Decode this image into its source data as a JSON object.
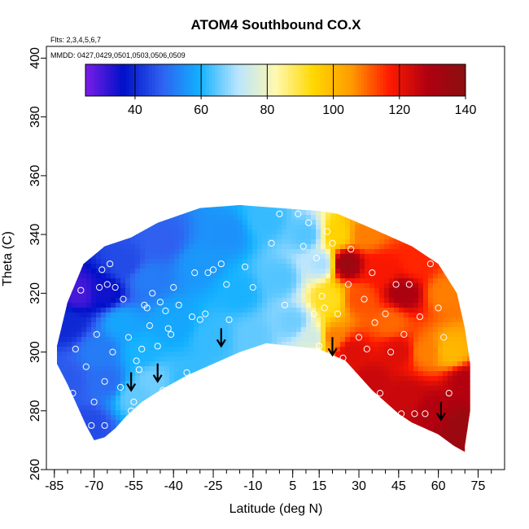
{
  "chart_data": {
    "type": "heatmap",
    "title": "ATOM4 Southbound CO.X",
    "annotations": [
      "Flts: 2,3,4,5,6,7",
      "MMDD: 0427,0429,0501,0503,0506,0509"
    ],
    "xlabel": "Latitude (deg N)",
    "ylabel": "Theta (C)",
    "xlim": [
      -88,
      85
    ],
    "ylim": [
      260,
      404
    ],
    "x_ticks": [
      -85,
      -70,
      -55,
      -40,
      -25,
      -10,
      5,
      15,
      30,
      45,
      60,
      75
    ],
    "y_ticks": [
      260,
      280,
      300,
      320,
      340,
      360,
      380,
      400
    ],
    "colorbar": {
      "range": [
        25,
        140
      ],
      "ticks": [
        40,
        60,
        80,
        100,
        120,
        140
      ],
      "colors": [
        "#7a1ee8",
        "#0010c8",
        "#2f60f0",
        "#12b0ff",
        "#b8e4ff",
        "#fff8b0",
        "#ffd800",
        "#ff9a00",
        "#ff1a00",
        "#b00010",
        "#8a1010"
      ],
      "placement": "top"
    },
    "domain_boundary": {
      "upper": [
        [
          -84,
          302
        ],
        [
          -80,
          317
        ],
        [
          -74,
          330
        ],
        [
          -66,
          336
        ],
        [
          -56,
          339
        ],
        [
          -46,
          344
        ],
        [
          -30,
          349
        ],
        [
          -15,
          350
        ],
        [
          0,
          349
        ],
        [
          15,
          348
        ],
        [
          22,
          347
        ],
        [
          35,
          342
        ],
        [
          50,
          336
        ],
        [
          60,
          330
        ],
        [
          67,
          320
        ],
        [
          70,
          308
        ],
        [
          72,
          296
        ],
        [
          72,
          280
        ],
        [
          70,
          268
        ]
      ],
      "lower": [
        [
          70,
          266
        ],
        [
          66,
          268
        ],
        [
          60,
          272
        ],
        [
          50,
          276
        ],
        [
          45,
          279
        ],
        [
          35,
          287
        ],
        [
          25,
          297
        ],
        [
          15,
          301
        ],
        [
          5,
          302
        ],
        [
          -5,
          303
        ],
        [
          -15,
          300
        ],
        [
          -25,
          296
        ],
        [
          -35,
          292
        ],
        [
          -45,
          287
        ],
        [
          -52,
          283
        ],
        [
          -58,
          278
        ],
        [
          -62,
          274
        ],
        [
          -66,
          271
        ],
        [
          -70,
          270
        ],
        [
          -73,
          275
        ],
        [
          -76,
          281
        ],
        [
          -80,
          289
        ],
        [
          -84,
          296
        ]
      ]
    },
    "field_samples": [
      {
        "lat": -80,
        "theta": 290,
        "value": 47
      },
      {
        "lat": -80,
        "theta": 310,
        "value": 40
      },
      {
        "lat": -76,
        "theta": 320,
        "value": 30
      },
      {
        "lat": -72,
        "theta": 275,
        "value": 45
      },
      {
        "lat": -68,
        "theta": 300,
        "value": 52
      },
      {
        "lat": -66,
        "theta": 320,
        "value": 35
      },
      {
        "lat": -65,
        "theta": 290,
        "value": 50
      },
      {
        "lat": -60,
        "theta": 310,
        "value": 58
      },
      {
        "lat": -58,
        "theta": 330,
        "value": 45
      },
      {
        "lat": -55,
        "theta": 285,
        "value": 65
      },
      {
        "lat": -52,
        "theta": 300,
        "value": 60
      },
      {
        "lat": -50,
        "theta": 325,
        "value": 52
      },
      {
        "lat": -48,
        "theta": 290,
        "value": 66
      },
      {
        "lat": -44,
        "theta": 338,
        "value": 48
      },
      {
        "lat": -40,
        "theta": 310,
        "value": 58
      },
      {
        "lat": -35,
        "theta": 290,
        "value": 62
      },
      {
        "lat": -30,
        "theta": 330,
        "value": 56
      },
      {
        "lat": -25,
        "theta": 305,
        "value": 62
      },
      {
        "lat": -20,
        "theta": 340,
        "value": 55
      },
      {
        "lat": -15,
        "theta": 320,
        "value": 60
      },
      {
        "lat": -10,
        "theta": 305,
        "value": 65
      },
      {
        "lat": -5,
        "theta": 345,
        "value": 62
      },
      {
        "lat": 0,
        "theta": 325,
        "value": 64
      },
      {
        "lat": 5,
        "theta": 310,
        "value": 66
      },
      {
        "lat": 10,
        "theta": 340,
        "value": 64
      },
      {
        "lat": 13,
        "theta": 305,
        "value": 75
      },
      {
        "lat": 16,
        "theta": 330,
        "value": 70
      },
      {
        "lat": 19,
        "theta": 318,
        "value": 92
      },
      {
        "lat": 20,
        "theta": 305,
        "value": 108
      },
      {
        "lat": 22,
        "theta": 340,
        "value": 95
      },
      {
        "lat": 25,
        "theta": 330,
        "value": 135
      },
      {
        "lat": 27,
        "theta": 300,
        "value": 122
      },
      {
        "lat": 30,
        "theta": 318,
        "value": 112
      },
      {
        "lat": 32,
        "theta": 340,
        "value": 108
      },
      {
        "lat": 35,
        "theta": 290,
        "value": 125
      },
      {
        "lat": 38,
        "theta": 328,
        "value": 118
      },
      {
        "lat": 42,
        "theta": 310,
        "value": 110
      },
      {
        "lat": 45,
        "theta": 300,
        "value": 122
      },
      {
        "lat": 47,
        "theta": 320,
        "value": 130
      },
      {
        "lat": 48,
        "theta": 285,
        "value": 125
      },
      {
        "lat": 52,
        "theta": 330,
        "value": 116
      },
      {
        "lat": 55,
        "theta": 300,
        "value": 108
      },
      {
        "lat": 58,
        "theta": 280,
        "value": 128
      },
      {
        "lat": 62,
        "theta": 320,
        "value": 108
      },
      {
        "lat": 65,
        "theta": 300,
        "value": 100
      },
      {
        "lat": 68,
        "theta": 275,
        "value": 135
      },
      {
        "lat": 70,
        "theta": 290,
        "value": 128
      }
    ],
    "observations": [
      [
        -82,
        320
      ],
      [
        -78,
        286
      ],
      [
        -77,
        301
      ],
      [
        -75,
        321
      ],
      [
        -73,
        295
      ],
      [
        -71,
        275
      ],
      [
        -70,
        283
      ],
      [
        -69,
        306
      ],
      [
        -68,
        322
      ],
      [
        -67,
        328
      ],
      [
        -66,
        290
      ],
      [
        -66,
        275
      ],
      [
        -65,
        323
      ],
      [
        -64,
        330
      ],
      [
        -63,
        300
      ],
      [
        -62,
        322
      ],
      [
        -60,
        288
      ],
      [
        -59,
        318
      ],
      [
        -57,
        305
      ],
      [
        -56,
        280
      ],
      [
        -55,
        283
      ],
      [
        -54,
        297
      ],
      [
        -53,
        294
      ],
      [
        -52,
        301
      ],
      [
        -51,
        316
      ],
      [
        -50,
        315
      ],
      [
        -49,
        309
      ],
      [
        -48,
        320
      ],
      [
        -47,
        284
      ],
      [
        -46,
        302
      ],
      [
        -45,
        317
      ],
      [
        -44,
        287
      ],
      [
        -43,
        314
      ],
      [
        -42,
        308
      ],
      [
        -41,
        306
      ],
      [
        -40,
        322
      ],
      [
        -38,
        316
      ],
      [
        -35,
        293
      ],
      [
        -33,
        312
      ],
      [
        -32,
        327
      ],
      [
        -30,
        311
      ],
      [
        -28,
        313
      ],
      [
        -27,
        327
      ],
      [
        -25,
        328
      ],
      [
        -22,
        330
      ],
      [
        -20,
        323
      ],
      [
        -19,
        311
      ],
      [
        -17,
        296
      ],
      [
        -13,
        329
      ],
      [
        -10,
        322
      ],
      [
        -6,
        300
      ],
      [
        -3,
        337
      ],
      [
        0,
        347
      ],
      [
        2,
        316
      ],
      [
        5,
        300
      ],
      [
        7,
        347
      ],
      [
        9,
        336
      ],
      [
        11,
        344
      ],
      [
        13,
        313
      ],
      [
        14,
        332
      ],
      [
        15,
        302
      ],
      [
        16,
        319
      ],
      [
        17,
        315
      ],
      [
        18,
        341
      ],
      [
        19,
        299
      ],
      [
        20,
        337
      ],
      [
        22,
        313
      ],
      [
        24,
        298
      ],
      [
        26,
        323
      ],
      [
        27,
        335
      ],
      [
        29,
        291
      ],
      [
        30,
        305
      ],
      [
        32,
        318
      ],
      [
        33,
        301
      ],
      [
        35,
        327
      ],
      [
        36,
        310
      ],
      [
        38,
        286
      ],
      [
        40,
        313
      ],
      [
        42,
        300
      ],
      [
        44,
        323
      ],
      [
        46,
        279
      ],
      [
        47,
        306
      ],
      [
        49,
        323
      ],
      [
        51,
        279
      ],
      [
        53,
        312
      ],
      [
        55,
        279
      ],
      [
        57,
        330
      ],
      [
        60,
        315
      ],
      [
        62,
        305
      ],
      [
        64,
        286
      ]
    ],
    "arrows": [
      {
        "lat": -56,
        "theta": 287
      },
      {
        "lat": -46,
        "theta": 290
      },
      {
        "lat": -22,
        "theta": 302
      },
      {
        "lat": 20,
        "theta": 299
      },
      {
        "lat": 61,
        "theta": 277
      }
    ]
  }
}
